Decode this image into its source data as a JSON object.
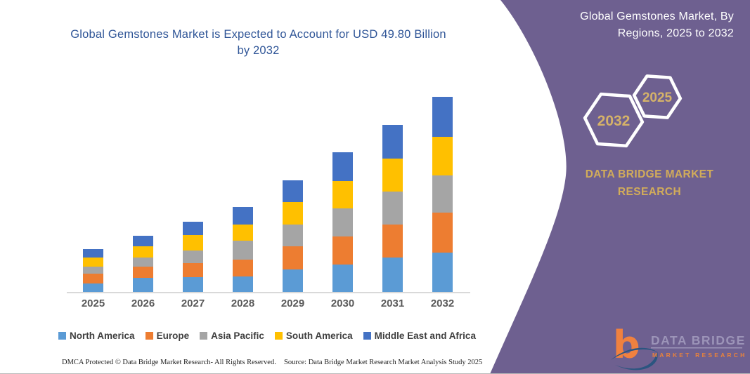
{
  "chart": {
    "title": "Global Gemstones Market is Expected to Account for USD 49.80 Billion by 2032",
    "footer_dmca": "DMCA Protected © Data Bridge Market Research-  All Rights Reserved.",
    "footer_source": "Source: Data Bridge Market Research  Market Analysis Study 2025"
  },
  "chart_data": {
    "type": "bar",
    "stacked": true,
    "unit": "USD Billion",
    "title": "Global Gemstones Market is Expected to Account for USD 49.80 Billion by 2032",
    "categories": [
      "2025",
      "2026",
      "2027",
      "2028",
      "2029",
      "2030",
      "2031",
      "2032"
    ],
    "series": [
      {
        "name": "North America",
        "color": "#5B9BD5",
        "values": [
          2.2,
          3.5,
          3.8,
          4.0,
          5.8,
          7.0,
          8.7,
          10.0
        ]
      },
      {
        "name": "Europe",
        "color": "#ED7D31",
        "values": [
          2.5,
          3.0,
          3.5,
          4.2,
          5.9,
          7.1,
          8.5,
          10.2
        ]
      },
      {
        "name": "Asia Pacific",
        "color": "#A5A5A5",
        "values": [
          1.8,
          2.2,
          3.3,
          4.8,
          5.5,
          7.3,
          8.4,
          9.6
        ]
      },
      {
        "name": "South America",
        "color": "#FFC000",
        "values": [
          2.2,
          2.9,
          3.9,
          4.2,
          5.7,
          6.9,
          8.4,
          9.8
        ]
      },
      {
        "name": "Middle East and Africa",
        "color": "#4472C4",
        "values": [
          2.2,
          2.7,
          3.5,
          4.4,
          5.6,
          7.3,
          8.6,
          10.2
        ]
      }
    ],
    "totals_estimated": [
      10.9,
      14.3,
      18.0,
      21.6,
      28.5,
      35.6,
      42.6,
      49.8
    ],
    "xlabel": "",
    "ylabel": "",
    "ylim": [
      0,
      52
    ],
    "grid": false,
    "y_axis_shown": false,
    "legend_position": "bottom"
  },
  "side_panel": {
    "title": "Global Gemstones Market, By Regions, 2025 to 2032",
    "hexagons": [
      {
        "label": "2032"
      },
      {
        "label": "2025"
      }
    ],
    "brand_text": "DATA BRIDGE MARKET RESEARCH",
    "panel_color": "#6E6090",
    "gold_color": "#D2AC5A"
  },
  "logo": {
    "line1": "DATA BRIDGE",
    "line2": "MARKET RESEARCH"
  },
  "colors": {
    "title_blue": "#2F5597",
    "axis_label_gray": "#595959",
    "legend_text": "#3f3f3f",
    "axis_line": "#d9d9d9"
  }
}
